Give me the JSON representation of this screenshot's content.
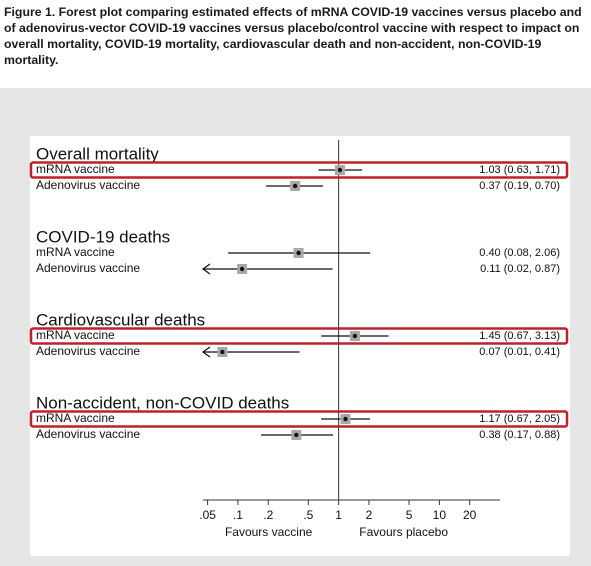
{
  "chart_data": {
    "type": "forest",
    "title": "Figure 1. Forest plot comparing estimated effects of mRNA COVID-19 vaccines versus placebo and of adenovirus-vector COVID-19 vaccines versus placebo/control vaccine with respect to impact on overall mortality, COVID-19 mortality, cardiovascular death and non-accident, non-COVID-19 mortality.",
    "groups": [
      {
        "name": "Overall mortality",
        "categories": [
          "mRNA vaccine",
          "Adenovirus vaccine"
        ],
        "values": [
          1.03,
          0.37
        ],
        "ci_low": [
          0.63,
          0.19
        ],
        "ci_high": [
          1.71,
          0.7
        ],
        "value_labels": [
          "1.03 (0.63, 1.71)",
          "0.37 (0.19, 0.70)"
        ],
        "highlight": [
          true,
          false
        ]
      },
      {
        "name": "COVID-19 deaths",
        "categories": [
          "mRNA vaccine",
          "Adenovirus vaccine"
        ],
        "values": [
          0.4,
          0.11
        ],
        "ci_low": [
          0.08,
          0.02
        ],
        "ci_high": [
          2.06,
          0.87
        ],
        "value_labels": [
          "0.40 (0.08, 2.06)",
          "0.11 (0.02, 0.87)"
        ],
        "highlight": [
          false,
          false
        ]
      },
      {
        "name": "Cardiovascular deaths",
        "categories": [
          "mRNA vaccine",
          "Adenovirus vaccine"
        ],
        "values": [
          1.45,
          0.07
        ],
        "ci_low": [
          0.67,
          0.01
        ],
        "ci_high": [
          3.13,
          0.41
        ],
        "value_labels": [
          "1.45 (0.67, 3.13)",
          "0.07 (0.01, 0.41)"
        ],
        "highlight": [
          true,
          false
        ]
      },
      {
        "name": "Non-accident, non-COVID deaths",
        "categories": [
          "mRNA vaccine",
          "Adenovirus vaccine"
        ],
        "values": [
          1.17,
          0.38
        ],
        "ci_low": [
          0.67,
          0.17
        ],
        "ci_high": [
          2.05,
          0.88
        ],
        "value_labels": [
          "1.17 (0.67, 2.05)",
          "0.38 (0.17, 0.88)"
        ],
        "highlight": [
          true,
          false
        ]
      }
    ],
    "xscale": "log",
    "xlim": [
      0.045,
      40
    ],
    "xticks": [
      {
        "value": 0.05,
        "label": ".05"
      },
      {
        "value": 0.1,
        "label": ".1"
      },
      {
        "value": 0.2,
        "label": ".2"
      },
      {
        "value": 0.5,
        "label": ".5"
      },
      1,
      2,
      5,
      10,
      20
    ],
    "reference_line": 1,
    "xlabel_left": "Favours vaccine",
    "xlabel_right": "Favours placebo",
    "highlight_color": "#c0202a"
  }
}
